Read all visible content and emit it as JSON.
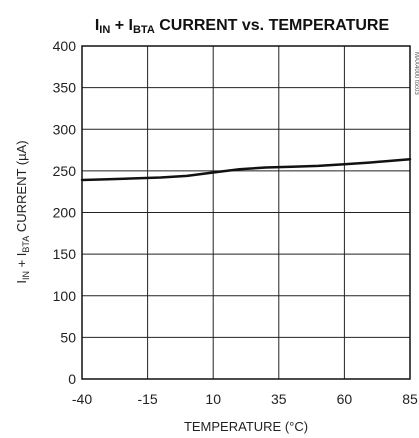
{
  "chart_data": {
    "type": "line",
    "title": {
      "p1": "I",
      "p1_sub": "IN",
      "p2": " + I",
      "p2_sub": "BTA",
      "p3": " CURRENT vs. TEMPERATURE"
    },
    "xlabel": "TEMPERATURE (°C)",
    "ylabel": {
      "p1": "I",
      "p1_sub": "IN",
      "p2": " + I",
      "p2_sub": "BTA",
      "p3": " CURRENT (µA)"
    },
    "xlim": [
      -40,
      85
    ],
    "ylim": [
      0,
      400
    ],
    "x_ticks": [
      "-40",
      "-15",
      "10",
      "35",
      "60",
      "85"
    ],
    "y_ticks": [
      "0",
      "50",
      "100",
      "150",
      "200",
      "250",
      "300",
      "350",
      "400"
    ],
    "grid": true,
    "series": [
      {
        "x": [
          -40,
          -30,
          -20,
          -10,
          0,
          10,
          20,
          30,
          40,
          50,
          60,
          70,
          85
        ],
        "y": [
          239,
          240,
          241,
          242,
          244,
          248,
          252,
          254,
          255,
          256,
          258,
          260,
          264
        ]
      }
    ],
    "side_id": "MAX4000 toc03"
  }
}
